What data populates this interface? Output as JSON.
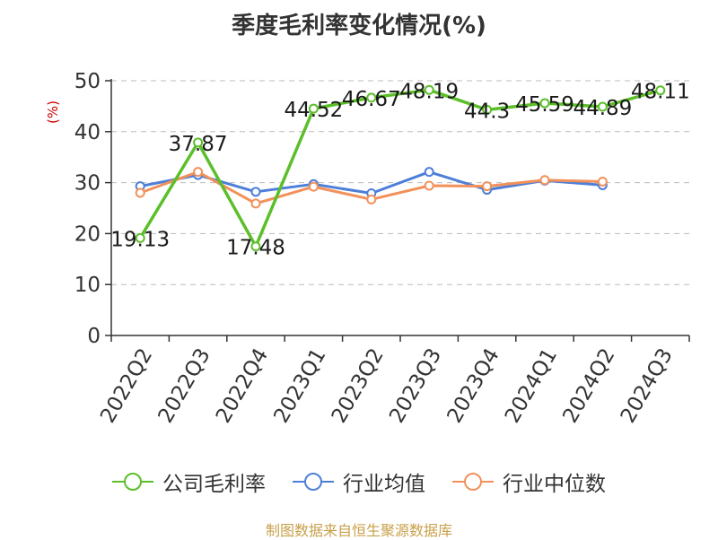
{
  "chart_data": {
    "type": "line",
    "title": "季度毛利率变化情况(%)",
    "unit_label": "(%)",
    "categories": [
      "2022Q2",
      "2022Q3",
      "2022Q4",
      "2023Q1",
      "2023Q2",
      "2023Q3",
      "2023Q4",
      "2024Q1",
      "2024Q2",
      "2024Q3"
    ],
    "ylim": [
      0,
      50
    ],
    "yticks": [
      0,
      10,
      20,
      30,
      40,
      50
    ],
    "grid": true,
    "legend_position": "bottom",
    "series": [
      {
        "name": "公司毛利率",
        "color": "#5cbf2a",
        "values": [
          19.13,
          37.87,
          17.48,
          44.52,
          46.67,
          48.19,
          44.3,
          45.59,
          44.89,
          48.11
        ],
        "labels": [
          "19.13",
          "37.87",
          "17.48",
          "44.52",
          "46.67",
          "48.19",
          "44.3",
          "45.59",
          "44.89",
          "48.11"
        ]
      },
      {
        "name": "行业均值",
        "color": "#4e7fd8",
        "values": [
          29.3,
          31.5,
          28.2,
          29.7,
          27.9,
          32.1,
          28.6,
          30.4,
          29.5,
          null
        ]
      },
      {
        "name": "行业中位数",
        "color": "#f2915a",
        "values": [
          28.0,
          32.1,
          25.9,
          29.2,
          26.7,
          29.4,
          29.3,
          30.5,
          30.2,
          null
        ]
      }
    ]
  },
  "source": "制图数据来自恒生聚源数据库"
}
